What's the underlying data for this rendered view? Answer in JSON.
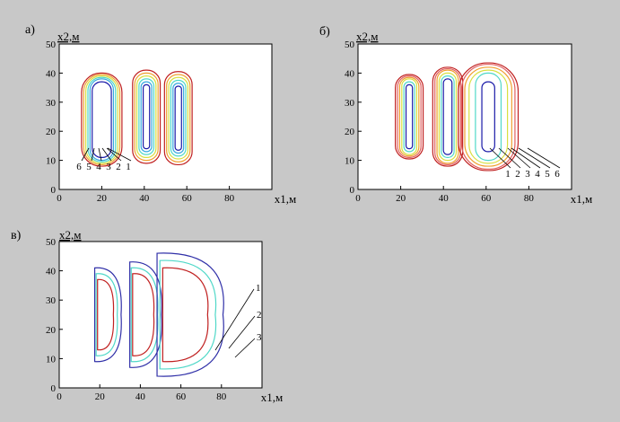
{
  "chart_data": [
    {
      "type": "contour",
      "panel_label": "а)",
      "xlabel": "x1,м",
      "ylabel": "x2,м",
      "xlim": [
        0,
        100
      ],
      "ylim": [
        0,
        50
      ],
      "xticks": [
        "0",
        "20",
        "40",
        "60",
        "80"
      ],
      "yticks": [
        "0",
        "10",
        "20",
        "30",
        "40",
        "50"
      ],
      "contour_labels": [
        "6",
        "5",
        "4",
        "3",
        "2",
        "1"
      ],
      "colors": [
        "#1a1aa8",
        "#38a8e0",
        "#50d8c8",
        "#d8e040",
        "#f0a030",
        "#c02020"
      ],
      "series": [
        {
          "x": 20,
          "y": 24,
          "rx": [
            4.5,
            5.5,
            6.5,
            7.5,
            8.5,
            9.5
          ],
          "ry": [
            13,
            14,
            14.5,
            15,
            15.5,
            16
          ]
        },
        {
          "x": 41,
          "y": 25,
          "rx": [
            1.5,
            2.5,
            3.5,
            4.5,
            5.5,
            6.5
          ],
          "ry": [
            11,
            12,
            13,
            14,
            15,
            16
          ]
        },
        {
          "x": 56,
          "y": 24.5,
          "rx": [
            1.5,
            2.5,
            3.5,
            4.5,
            5.5,
            6.5
          ],
          "ry": [
            11,
            12,
            13,
            14,
            15,
            16
          ]
        }
      ]
    },
    {
      "type": "contour",
      "panel_label": "б)",
      "xlabel": "x1,м",
      "ylabel": "x2,м",
      "xlim": [
        0,
        100
      ],
      "ylim": [
        0,
        50
      ],
      "xticks": [
        "0",
        "20",
        "40",
        "60",
        "80"
      ],
      "yticks": [
        "0",
        "10",
        "20",
        "30",
        "40",
        "50"
      ],
      "contour_labels": [
        "1",
        "2",
        "3",
        "4",
        "5",
        "6"
      ],
      "colors": [
        "#1a1aa8",
        "#50d8c8",
        "#d8e040",
        "#f0a030",
        "#e06060",
        "#c02020"
      ],
      "series": [
        {
          "x": 24,
          "y": 25,
          "rx": [
            1.5,
            2.5,
            3.5,
            4.5,
            5.5,
            6.5
          ],
          "ry": [
            11,
            12,
            13,
            13.5,
            14,
            14.5
          ]
        },
        {
          "x": 42,
          "y": 25,
          "rx": [
            2,
            3,
            4,
            5,
            6,
            7
          ],
          "ry": [
            13,
            14,
            15,
            16,
            16.5,
            17
          ]
        },
        {
          "x": 61,
          "y": 25,
          "rx": [
            3,
            6,
            9,
            11,
            12.5,
            14
          ],
          "ry": [
            12,
            15,
            16,
            17,
            18,
            18.5
          ]
        }
      ]
    },
    {
      "type": "contour",
      "panel_label": "в)",
      "xlabel": "x1,м",
      "ylabel": "x2,м",
      "xlim": [
        0,
        100
      ],
      "ylim": [
        0,
        50
      ],
      "xticks": [
        "0",
        "20",
        "40",
        "60",
        "80"
      ],
      "yticks": [
        "0",
        "10",
        "20",
        "30",
        "40",
        "50"
      ],
      "contour_labels": [
        "1",
        "2",
        "3"
      ],
      "colors": [
        "#c02020",
        "#50d8c8",
        "#3030a8"
      ],
      "series": [
        {
          "x": 21,
          "y": 25,
          "kind": "bracket",
          "rx": [
            6,
            8,
            10
          ],
          "ry": [
            12,
            14,
            16
          ]
        },
        {
          "x": 39,
          "y": 25,
          "kind": "bracket",
          "rx": [
            8,
            10,
            12
          ],
          "ry": [
            14,
            16,
            18
          ]
        },
        {
          "x": 57,
          "y": 25,
          "kind": "bracket",
          "rx": [
            17,
            21,
            25
          ],
          "ry": [
            16,
            18.5,
            21
          ]
        }
      ]
    }
  ]
}
